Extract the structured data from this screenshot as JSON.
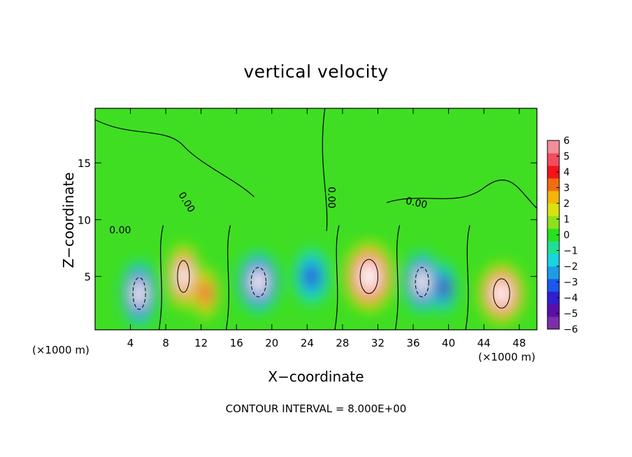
{
  "chart_data": {
    "type": "heatmap",
    "title": "vertical velocity",
    "xlabel": "X−coordinate",
    "ylabel": "Z−coordinate",
    "x_unit_label": "(×1000 m)",
    "xlim": [
      0,
      50
    ],
    "ylim": [
      0.3,
      19.8
    ],
    "x_ticks": [
      4,
      8,
      12,
      16,
      20,
      24,
      28,
      32,
      36,
      40,
      44,
      48
    ],
    "y_ticks": [
      5,
      10,
      15
    ],
    "contour_interval_label": "CONTOUR INTERVAL = 8.000E+00",
    "contour_labels": [
      "0.00",
      "0.00",
      "0.00",
      "0.00"
    ],
    "colorbar": {
      "ticks": [
        6,
        5,
        4,
        3,
        2,
        1,
        0,
        -1,
        -2,
        -3,
        -4,
        -5,
        -6
      ],
      "range": [
        -6,
        6
      ],
      "colors": [
        "#7e2dab",
        "#5a0fa8",
        "#2f1fd1",
        "#1c58ef",
        "#1c9de6",
        "#19d4e0",
        "#20df94",
        "#26e11e",
        "#8ce21b",
        "#d9e20f",
        "#f3b50a",
        "#f36c10",
        "#f2141a",
        "#f24c5d",
        "#f38d9a"
      ]
    },
    "cells": [
      {
        "x": 5,
        "z": 3.5,
        "w": -7,
        "sx": 1.7,
        "sz": 2.8
      },
      {
        "x": 10,
        "z": 5,
        "w": 7,
        "sx": 1.6,
        "sz": 2.8
      },
      {
        "x": 12.5,
        "z": 3.5,
        "w": 5,
        "sx": 1.3,
        "sz": 2.2
      },
      {
        "x": 18.5,
        "z": 4.5,
        "w": -7,
        "sx": 2.0,
        "sz": 2.6
      },
      {
        "x": 24.5,
        "z": 5,
        "w": -4,
        "sx": 1.8,
        "sz": 2.5
      },
      {
        "x": 31,
        "z": 5,
        "w": 8,
        "sx": 2.4,
        "sz": 3.0
      },
      {
        "x": 37,
        "z": 4.5,
        "w": -7,
        "sx": 1.8,
        "sz": 2.6
      },
      {
        "x": 39.5,
        "z": 4,
        "w": -5,
        "sx": 1.2,
        "sz": 2.2
      },
      {
        "x": 46,
        "z": 3.5,
        "w": 7.5,
        "sx": 2.2,
        "sz": 2.6
      }
    ],
    "grid": false
  }
}
